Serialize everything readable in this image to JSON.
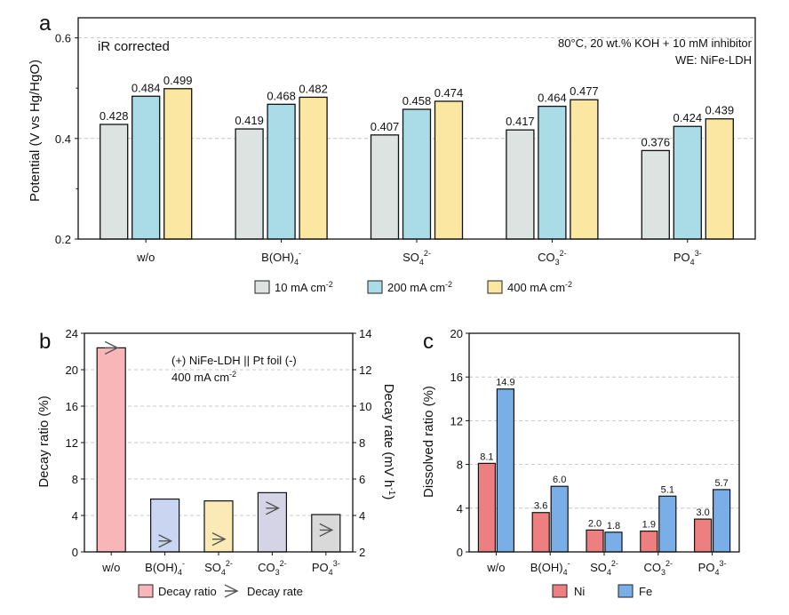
{
  "chart_data": [
    {
      "panel": "a",
      "type": "bar",
      "annotation_left": "iR corrected",
      "annotation_right_1": "80°C, 20 wt.% KOH + 10 mM inhibitor",
      "annotation_right_2": "WE: NiFe-LDH",
      "ylabel": "Potential (V vs Hg/HgO)",
      "ylim": [
        0.2,
        0.64
      ],
      "yticks": [
        "0.2",
        "0.4",
        "0.6"
      ],
      "categories": [
        "w/o",
        "B(OH)4-",
        "SO42-",
        "CO32-",
        "PO43-"
      ],
      "series": [
        {
          "name": "10 mA cm-2",
          "color": "#dde3e1",
          "values": [
            0.428,
            0.419,
            0.407,
            0.417,
            0.376
          ],
          "labels": [
            "0.428",
            "0.419",
            "0.407",
            "0.417",
            "0.376"
          ]
        },
        {
          "name": "200 mA cm-2",
          "color": "#a9dce6",
          "values": [
            0.484,
            0.468,
            0.458,
            0.464,
            0.424
          ],
          "labels": [
            "0.484",
            "0.468",
            "0.458",
            "0.464",
            "0.424"
          ]
        },
        {
          "name": "400 mA cm-2",
          "color": "#fbe7a1",
          "values": [
            0.499,
            0.482,
            0.474,
            0.477,
            0.439
          ],
          "labels": [
            "0.499",
            "0.482",
            "0.474",
            "0.477",
            "0.439"
          ]
        }
      ],
      "grid": "horizontal dashed",
      "legend": "bottom"
    },
    {
      "panel": "b",
      "type": "bar",
      "annotation_1": "(+) NiFe-LDH || Pt foil (-)",
      "annotation_2": "400 mA cm-2",
      "ylabel": "Decay ratio (%)",
      "ylim": [
        0,
        24
      ],
      "yticks": [
        "0",
        "4",
        "8",
        "12",
        "16",
        "20",
        "24"
      ],
      "y2label": "Decay rate (mV h-1)",
      "y2lim": [
        2,
        14
      ],
      "y2ticks": [
        "2",
        "4",
        "6",
        "8",
        "10",
        "12",
        "14"
      ],
      "categories": [
        "w/o",
        "B(OH)4-",
        "SO42-",
        "CO32-",
        "PO43-"
      ],
      "series": [
        {
          "name": "Decay ratio",
          "type": "bar",
          "colors": [
            "#f9b6b8",
            "#c9d5f1",
            "#fbeab5",
            "#d5d3e6",
            "#d9d9d9"
          ],
          "values": [
            22.4,
            5.8,
            5.6,
            6.5,
            4.1
          ]
        },
        {
          "name": "Decay rate",
          "type": "marker",
          "values": [
            13.2,
            2.6,
            2.7,
            4.4,
            3.2
          ]
        }
      ],
      "grid": "horizontal dashed",
      "legend": "bottom"
    },
    {
      "panel": "c",
      "type": "bar",
      "ylabel": "Dissolved ratio (%)",
      "ylim": [
        0,
        20
      ],
      "yticks": [
        "0",
        "4",
        "8",
        "12",
        "16",
        "20"
      ],
      "categories": [
        "w/o",
        "B(OH)4-",
        "SO42-",
        "CO32-",
        "PO43-"
      ],
      "series": [
        {
          "name": "Ni",
          "color": "#ee7f80",
          "values": [
            8.1,
            3.6,
            2.0,
            1.9,
            3.0
          ],
          "labels": [
            "8.1",
            "3.6",
            "2.0",
            "1.9",
            "3.0"
          ]
        },
        {
          "name": "Fe",
          "color": "#7aaee6",
          "values": [
            14.9,
            6.0,
            1.8,
            5.1,
            5.7
          ],
          "labels": [
            "14.9",
            "6.0",
            "1.8",
            "5.1",
            "5.7"
          ]
        }
      ],
      "grid": "horizontal dashed",
      "legend": "bottom"
    }
  ]
}
